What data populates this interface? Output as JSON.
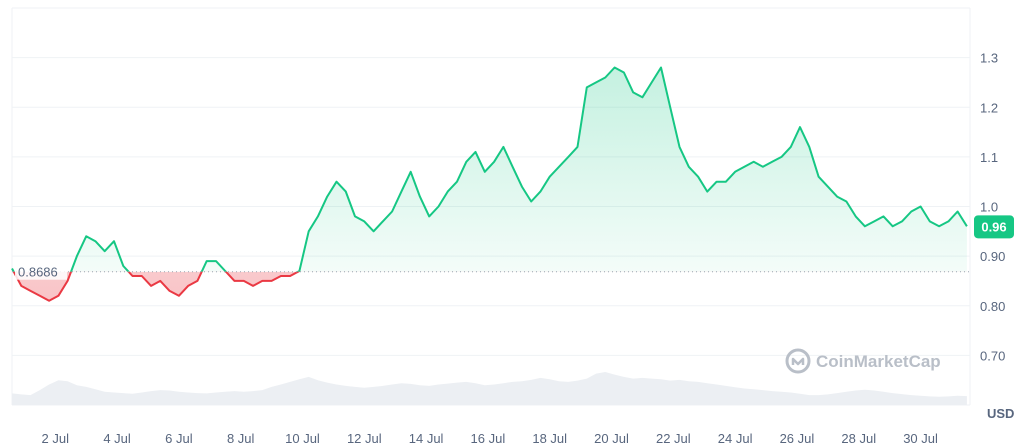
{
  "chart_data": {
    "type": "area",
    "x_ticks": [
      "2 Jul",
      "4 Jul",
      "6 Jul",
      "8 Jul",
      "10 Jul",
      "12 Jul",
      "14 Jul",
      "16 Jul",
      "18 Jul",
      "20 Jul",
      "22 Jul",
      "24 Jul",
      "26 Jul",
      "28 Jul",
      "30 Jul"
    ],
    "y_ticks": [
      "0.70",
      "0.80",
      "0.90",
      "1.0",
      "1.1",
      "1.2",
      "1.3"
    ],
    "ylim": [
      0.6,
      1.4
    ],
    "xlim": [
      0.6,
      31.6
    ],
    "grid": true,
    "unit_label": "USD",
    "reference_value": 0.8686,
    "reference_label": "0.8686",
    "current_value": 0.96,
    "current_label": "0.96",
    "watermark": "CoinMarketCap",
    "colors": {
      "up": "#16c784",
      "down": "#ea3943",
      "grid": "#eff2f5",
      "text": "#58667e"
    },
    "series": [
      {
        "x": [
          0.6,
          0.9,
          1.2,
          1.5,
          1.8,
          2.1,
          2.4,
          2.7,
          3.0,
          3.3,
          3.6,
          3.9,
          4.2,
          4.5,
          4.8,
          5.1,
          5.4,
          5.7,
          6.0,
          6.3,
          6.6,
          6.9,
          7.2,
          7.5,
          7.8,
          8.1,
          8.4,
          8.7,
          9.0,
          9.3,
          9.6,
          9.9,
          10.2,
          10.5,
          10.8,
          11.1,
          11.4,
          11.7,
          12.0,
          12.3,
          12.6,
          12.9,
          13.2,
          13.5,
          13.8,
          14.1,
          14.4,
          14.7,
          15.0,
          15.3,
          15.6,
          15.9,
          16.2,
          16.5,
          16.8,
          17.1,
          17.4,
          17.7,
          18.0,
          18.3,
          18.6,
          18.9,
          19.2,
          19.5,
          19.8,
          20.1,
          20.4,
          20.7,
          21.0,
          21.3,
          21.6,
          21.9,
          22.2,
          22.5,
          22.8,
          23.1,
          23.4,
          23.7,
          24.0,
          24.3,
          24.6,
          24.9,
          25.2,
          25.5,
          25.8,
          26.1,
          26.4,
          26.7,
          27.0,
          27.3,
          27.6,
          27.9,
          28.2,
          28.5,
          28.8,
          29.1,
          29.4,
          29.7,
          30.0,
          30.3,
          30.6,
          30.9,
          31.2,
          31.5
        ],
        "y": [
          0.875,
          0.84,
          0.83,
          0.82,
          0.81,
          0.82,
          0.85,
          0.9,
          0.94,
          0.93,
          0.91,
          0.93,
          0.88,
          0.86,
          0.86,
          0.84,
          0.85,
          0.83,
          0.82,
          0.84,
          0.85,
          0.89,
          0.89,
          0.87,
          0.85,
          0.85,
          0.84,
          0.85,
          0.85,
          0.86,
          0.86,
          0.87,
          0.95,
          0.98,
          1.02,
          1.05,
          1.03,
          0.98,
          0.97,
          0.95,
          0.97,
          0.99,
          1.03,
          1.07,
          1.02,
          0.98,
          1.0,
          1.03,
          1.05,
          1.09,
          1.11,
          1.07,
          1.09,
          1.12,
          1.08,
          1.04,
          1.01,
          1.03,
          1.06,
          1.08,
          1.1,
          1.12,
          1.24,
          1.25,
          1.26,
          1.28,
          1.27,
          1.23,
          1.22,
          1.25,
          1.28,
          1.2,
          1.12,
          1.08,
          1.06,
          1.03,
          1.05,
          1.05,
          1.07,
          1.08,
          1.09,
          1.08,
          1.09,
          1.1,
          1.12,
          1.16,
          1.12,
          1.06,
          1.04,
          1.02,
          1.01,
          0.98,
          0.96,
          0.97,
          0.98,
          0.96,
          0.97,
          0.99,
          1.0,
          0.97,
          0.96,
          0.97,
          0.99,
          0.96
        ]
      }
    ],
    "volume": [
      0.35,
      0.32,
      0.3,
      0.45,
      0.62,
      0.75,
      0.72,
      0.6,
      0.55,
      0.48,
      0.4,
      0.38,
      0.36,
      0.34,
      0.38,
      0.42,
      0.45,
      0.44,
      0.4,
      0.38,
      0.36,
      0.35,
      0.38,
      0.4,
      0.42,
      0.4,
      0.42,
      0.45,
      0.55,
      0.62,
      0.7,
      0.78,
      0.85,
      0.75,
      0.68,
      0.62,
      0.58,
      0.55,
      0.52,
      0.55,
      0.58,
      0.62,
      0.66,
      0.64,
      0.6,
      0.58,
      0.62,
      0.65,
      0.68,
      0.7,
      0.66,
      0.6,
      0.62,
      0.66,
      0.7,
      0.72,
      0.76,
      0.82,
      0.78,
      0.72,
      0.7,
      0.74,
      0.8,
      0.95,
      1.0,
      0.92,
      0.85,
      0.8,
      0.82,
      0.8,
      0.78,
      0.74,
      0.76,
      0.72,
      0.7,
      0.66,
      0.62,
      0.58,
      0.54,
      0.5,
      0.48,
      0.45,
      0.42,
      0.4,
      0.38,
      0.34,
      0.3,
      0.3,
      0.32,
      0.36,
      0.4,
      0.44,
      0.46,
      0.44,
      0.4,
      0.36,
      0.33,
      0.3,
      0.28,
      0.26,
      0.25,
      0.26,
      0.28,
      0.27
    ]
  }
}
